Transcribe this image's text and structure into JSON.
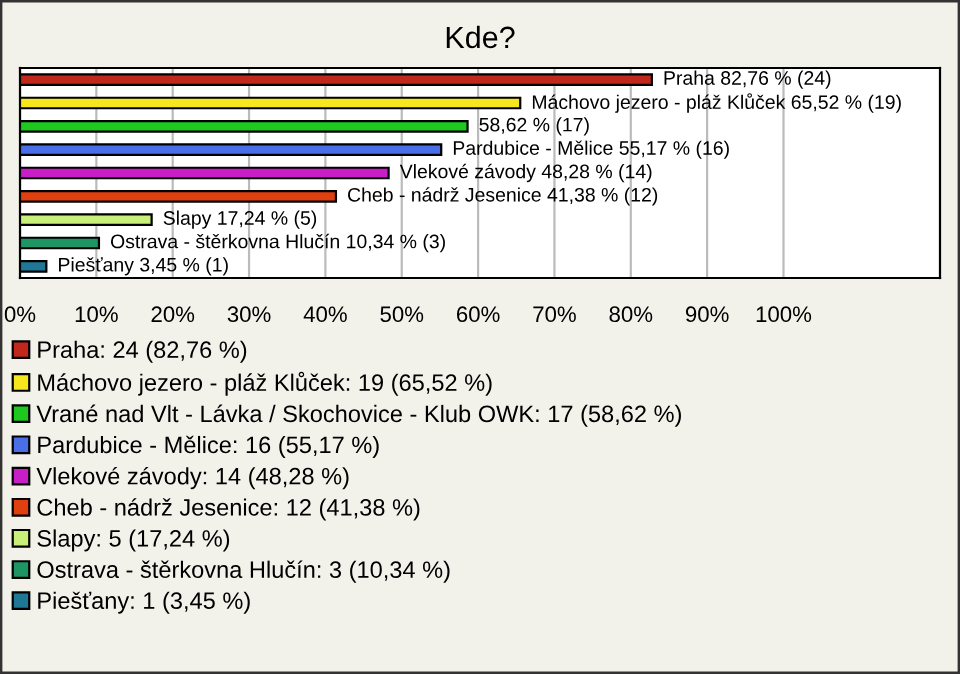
{
  "chart_data": {
    "type": "bar",
    "orientation": "horizontal",
    "title": "Kde?",
    "categories": [
      null,
      null,
      null,
      null,
      null,
      null,
      null,
      null,
      null
    ],
    "series": [
      {
        "name": "Praha: 24 (82,76 %)",
        "color": "#c0281c",
        "values": [
          82.76,
          null,
          null,
          null,
          null,
          null,
          null,
          null,
          null
        ],
        "value_labels": [
          "Praha 82,76 % (24)",
          null,
          null,
          null,
          null,
          null,
          null,
          null,
          null
        ]
      },
      {
        "name": "Máchovo jezero - pláž Klůček: 19 (65,52 %)",
        "color": "#f5e61e",
        "values": [
          null,
          65.52,
          null,
          null,
          null,
          null,
          null,
          null,
          null
        ],
        "value_labels": [
          null,
          "Máchovo jezero - pláž Klůček 65,52 % (19)",
          null,
          null,
          null,
          null,
          null,
          null,
          null
        ]
      },
      {
        "name": "Vrané nad Vlt - Lávka / Skochovice - Klub OWK: 17 (58,62 %)",
        "color": "#1ec81e",
        "values": [
          null,
          null,
          58.62,
          null,
          null,
          null,
          null,
          null,
          null
        ],
        "value_labels": [
          null,
          null,
          "58,62 % (17)",
          null,
          null,
          null,
          null,
          null,
          null
        ]
      },
      {
        "name": "Pardubice - Mělice: 16 (55,17 %)",
        "color": "#4a6ee8",
        "values": [
          null,
          null,
          null,
          55.17,
          null,
          null,
          null,
          null,
          null
        ],
        "value_labels": [
          null,
          null,
          null,
          "Pardubice - Mělice 55,17 % (16)",
          null,
          null,
          null,
          null,
          null
        ]
      },
      {
        "name": "Vlekové závody: 14 (48,28 %)",
        "color": "#c81ec8",
        "values": [
          null,
          null,
          null,
          null,
          48.28,
          null,
          null,
          null,
          null
        ],
        "value_labels": [
          null,
          null,
          null,
          null,
          "Vlekové závody 48,28 % (14)",
          null,
          null,
          null,
          null
        ]
      },
      {
        "name": "Cheb - nádrž Jesenice: 12 (41,38 %)",
        "color": "#e04010",
        "values": [
          null,
          null,
          null,
          null,
          null,
          41.38,
          null,
          null,
          null
        ],
        "value_labels": [
          null,
          null,
          null,
          null,
          null,
          "Cheb - nádrž Jesenice 41,38 % (12)",
          null,
          null,
          null
        ]
      },
      {
        "name": "Slapy: 5 (17,24 %)",
        "color": "#c8f078",
        "values": [
          null,
          null,
          null,
          null,
          null,
          null,
          17.24,
          null,
          null
        ],
        "value_labels": [
          null,
          null,
          null,
          null,
          null,
          null,
          "Slapy 17,24 % (5)",
          null,
          null
        ]
      },
      {
        "name": "Ostrava - štěrkovna Hlučín: 3 (10,34 %)",
        "color": "#1e9664",
        "values": [
          null,
          null,
          null,
          null,
          null,
          null,
          null,
          10.34,
          null
        ],
        "value_labels": [
          null,
          null,
          null,
          null,
          null,
          null,
          null,
          "Ostrava - štěrkovna Hlučín 10,34 % (3)",
          null
        ]
      },
      {
        "name": "Piešťany: 1 (3,45 %)",
        "color": "#1e7896",
        "values": [
          null,
          null,
          null,
          null,
          null,
          null,
          null,
          null,
          3.45
        ],
        "value_labels": [
          null,
          null,
          null,
          null,
          null,
          null,
          null,
          null,
          "Piešťany 3,45 % (1)"
        ]
      }
    ],
    "xlim": [
      0,
      120.5
    ],
    "xticks": [
      {
        "value": 0,
        "label": "0%"
      },
      {
        "value": 10,
        "label": "10%"
      },
      {
        "value": 20,
        "label": "20%"
      },
      {
        "value": 30,
        "label": "30%"
      },
      {
        "value": 40,
        "label": "40%"
      },
      {
        "value": 50,
        "label": "50%"
      },
      {
        "value": 60,
        "label": "60%"
      },
      {
        "value": 70,
        "label": "70%"
      },
      {
        "value": 80,
        "label": "80%"
      },
      {
        "value": 90,
        "label": "90%"
      },
      {
        "value": 100,
        "label": "100%"
      }
    ],
    "tick_labels": "x",
    "grid": "x",
    "legend": "bottom"
  }
}
